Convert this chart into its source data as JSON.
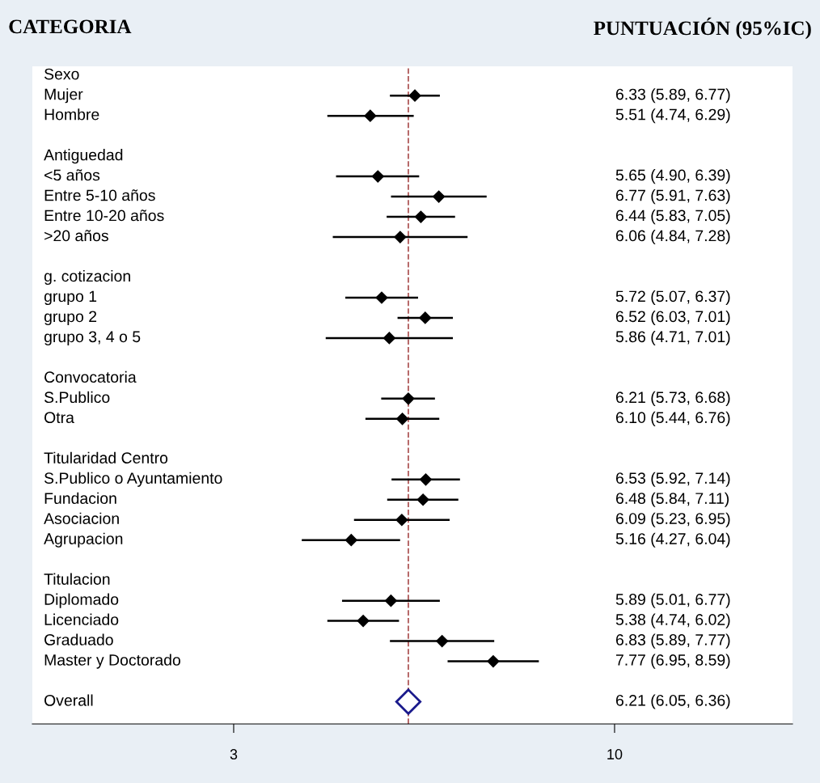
{
  "chart_data": {
    "type": "scatter",
    "orientation": "horizontal",
    "annotations": [
      "CATEGORIA",
      "PUNTUACIÓN (95%IC)",
      "6.33 (5.89, 6.77)",
      "5.51 (4.74, 6.29)",
      "5.65 (4.90, 6.39)",
      "6.77 (5.91, 7.63)",
      "6.44 (5.83, 7.05)",
      "6.06 (4.84, 7.28)",
      "5.72 (5.07, 6.37)",
      "6.52 (6.03, 7.01)",
      "5.86 (4.71, 7.01)",
      "6.21 (5.73, 6.68)",
      "6.10 (5.44, 6.76)",
      "6.53 (5.92, 7.14)",
      "6.48 (5.84, 7.11)",
      "6.09 (5.23, 6.95)",
      "5.16 (4.27, 6.04)",
      "5.89 (5.01, 6.77)",
      "5.38 (4.74, 6.02)",
      "6.83 (5.89, 7.77)",
      "7.77 (6.95, 8.59)",
      "6.21 (6.05, 6.36)"
    ],
    "categories": [
      "Sexo",
      "Mujer",
      "Hombre",
      null,
      "Antiguedad",
      "<5 años",
      "Entre 5-10 años",
      "Entre 10-20 años",
      ">20 años",
      null,
      "g. cotizacion",
      "grupo 1",
      "grupo 2",
      "grupo 3, 4 o 5",
      null,
      "Convocatoria",
      "S.Publico",
      "Otra",
      null,
      "Titularidad Centro",
      "S.Publico o Ayuntamiento",
      "Fundacion",
      "Asociacion",
      "Agrupacion",
      null,
      "Titulacion",
      "Diplomado",
      "Licenciado",
      "Graduado",
      "Master y Doctorado",
      null,
      "Overall"
    ],
    "series": [
      {
        "color": "#000000",
        "values": [
          null,
          6.33,
          5.51,
          null,
          null,
          5.65,
          6.77,
          6.44,
          6.06,
          null,
          null,
          5.72,
          6.52,
          5.86,
          null,
          null,
          6.21,
          6.1,
          null,
          null,
          6.53,
          6.48,
          6.09,
          5.16,
          null,
          null,
          5.89,
          5.38,
          6.83,
          7.77,
          null,
          null
        ],
        "errors": [
          null,
          [
            5.89,
            6.77
          ],
          [
            4.74,
            6.29
          ],
          null,
          null,
          [
            4.9,
            6.39
          ],
          [
            5.91,
            7.63
          ],
          [
            5.83,
            7.05
          ],
          [
            4.84,
            7.28
          ],
          null,
          null,
          [
            5.07,
            6.37
          ],
          [
            6.03,
            7.01
          ],
          [
            4.71,
            7.01
          ],
          null,
          null,
          [
            5.73,
            6.68
          ],
          [
            5.44,
            6.76
          ],
          null,
          null,
          [
            5.92,
            7.14
          ],
          [
            5.84,
            7.11
          ],
          [
            5.23,
            6.95
          ],
          [
            4.27,
            6.04
          ],
          null,
          null,
          [
            5.01,
            6.77
          ],
          [
            4.74,
            6.02
          ],
          [
            5.89,
            7.77
          ],
          [
            6.95,
            8.59
          ],
          null,
          null
        ]
      },
      {
        "color": "#1a1a8c",
        "values": [
          null,
          null,
          null,
          null,
          null,
          null,
          null,
          null,
          null,
          null,
          null,
          null,
          null,
          null,
          null,
          null,
          null,
          null,
          null,
          null,
          null,
          null,
          null,
          null,
          null,
          null,
          null,
          null,
          null,
          null,
          null,
          6.21
        ]
      }
    ],
    "marker": "diamond",
    "xlim": [
      -0.7,
      13.27
    ],
    "xticks": [
      3,
      10
    ],
    "grid": false,
    "legend": false,
    "ref_lines": [
      {
        "axis": "x",
        "value": 6.21,
        "color": "#b05a5a",
        "line_style": "dashed"
      }
    ]
  }
}
